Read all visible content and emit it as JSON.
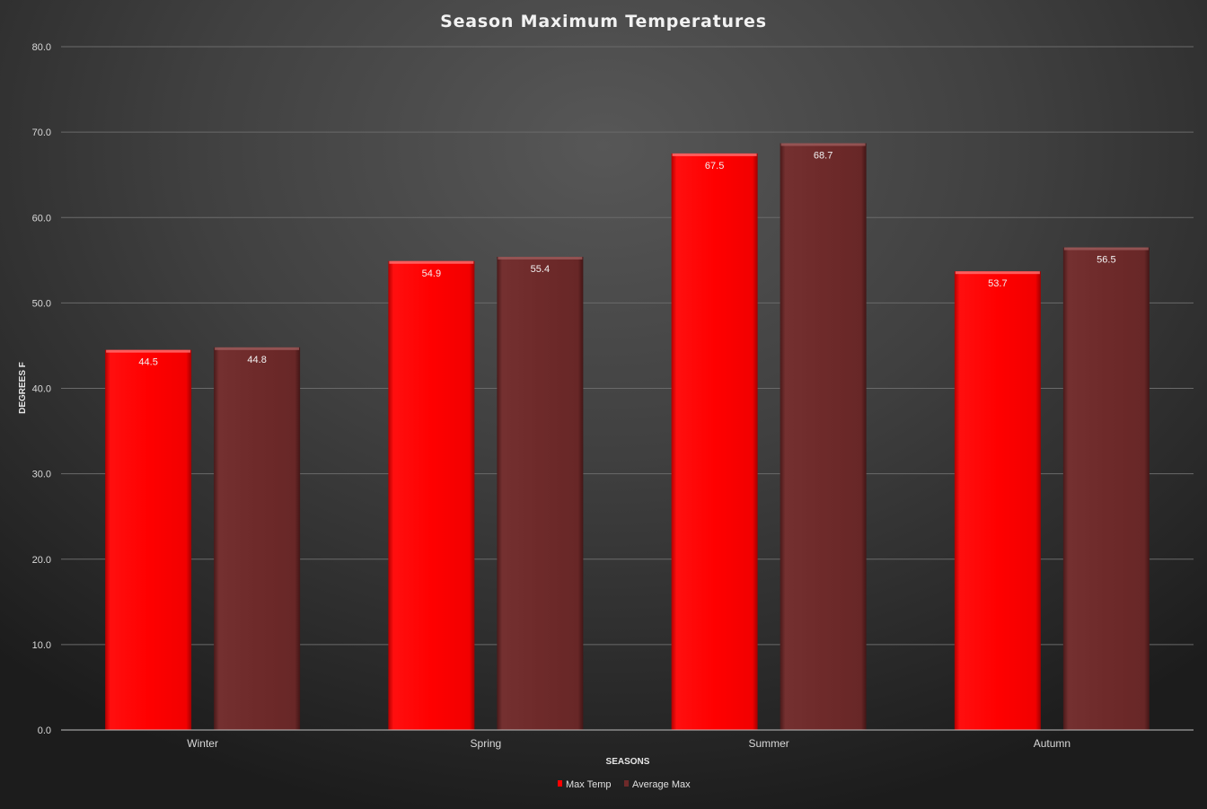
{
  "chart_data": {
    "type": "bar",
    "title": "Season Maximum Temperatures",
    "xlabel": "SEASONS",
    "ylabel": "DEGREES F",
    "categories": [
      "Winter",
      "Spring",
      "Summer",
      "Autumn"
    ],
    "series": [
      {
        "name": "Max Temp",
        "values": [
          44.5,
          54.9,
          67.5,
          53.7
        ],
        "color": "#ff0000"
      },
      {
        "name": "Average Max",
        "values": [
          44.8,
          55.4,
          68.7,
          56.5
        ],
        "color": "#6e2a2a"
      }
    ],
    "ylim": [
      0,
      80
    ],
    "yticks": [
      "0.0",
      "10.0",
      "20.0",
      "30.0",
      "40.0",
      "50.0",
      "60.0",
      "70.0",
      "80.0"
    ],
    "data_labels": true,
    "grid": true,
    "legend_position": "bottom"
  }
}
